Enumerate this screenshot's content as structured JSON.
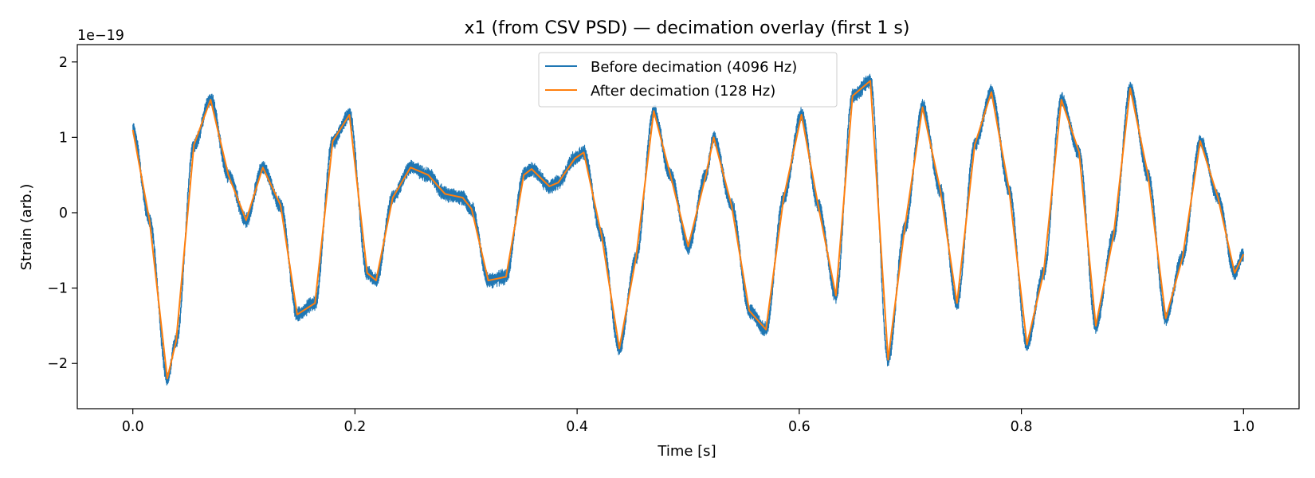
{
  "chart_data": {
    "type": "line",
    "title": "x1 (from CSV PSD) — decimation overlay (first 1 s)",
    "xlabel": "Time [s]",
    "ylabel": "Strain (arb.)",
    "y_offset_label": "1e−19",
    "xlim": [
      -0.05,
      1.05
    ],
    "ylim": [
      -2.6,
      2.23
    ],
    "x_ticks": [
      0.0,
      0.2,
      0.4,
      0.6,
      0.8,
      1.0
    ],
    "x_tick_labels": [
      "0.0",
      "0.2",
      "0.4",
      "0.6",
      "0.8",
      "1.0"
    ],
    "y_ticks": [
      -2,
      -1,
      0,
      1,
      2
    ],
    "y_tick_labels": [
      "−2",
      "−1",
      "0",
      "1",
      "2"
    ],
    "grid": false,
    "legend_position": "upper-center",
    "series": [
      {
        "name": "Before decimation (4096 Hz)",
        "color": "#1f77b4",
        "sample_rate_hz": 4096,
        "noise_amplitude": 0.09,
        "x": [
          0.0,
          0.015,
          0.031,
          0.039,
          0.055,
          0.07,
          0.086,
          0.102,
          0.117,
          0.133,
          0.148,
          0.164,
          0.18,
          0.195,
          0.211,
          0.219,
          0.234,
          0.25,
          0.266,
          0.281,
          0.297,
          0.305,
          0.32,
          0.336,
          0.352,
          0.359,
          0.375,
          0.383,
          0.398,
          0.406,
          0.422,
          0.438,
          0.453,
          0.469,
          0.484,
          0.5,
          0.516,
          0.523,
          0.539,
          0.555,
          0.57,
          0.586,
          0.602,
          0.617,
          0.633,
          0.648,
          0.664,
          0.68,
          0.695,
          0.711,
          0.727,
          0.742,
          0.758,
          0.773,
          0.789,
          0.805,
          0.82,
          0.836,
          0.852,
          0.867,
          0.883,
          0.898,
          0.914,
          0.93,
          0.945,
          0.961,
          0.977,
          0.992,
          1.0
        ],
        "values": [
          1.1,
          -0.1,
          -2.2,
          -1.7,
          0.9,
          1.5,
          0.5,
          -0.1,
          0.6,
          0.1,
          -1.35,
          -1.2,
          0.95,
          1.3,
          -0.8,
          -0.9,
          0.2,
          0.6,
          0.5,
          0.25,
          0.2,
          0.05,
          -0.9,
          -0.85,
          0.5,
          0.58,
          0.35,
          0.4,
          0.72,
          0.8,
          -0.3,
          -1.8,
          -0.6,
          1.35,
          0.5,
          -0.45,
          0.5,
          1.0,
          0.1,
          -1.3,
          -1.55,
          0.2,
          1.3,
          0.1,
          -1.1,
          1.55,
          1.75,
          -1.95,
          -0.2,
          1.4,
          0.3,
          -1.2,
          0.9,
          1.6,
          0.3,
          -1.75,
          -0.8,
          1.5,
          0.8,
          -1.5,
          -0.3,
          1.65,
          0.5,
          -1.4,
          -0.6,
          0.95,
          0.2,
          -0.8,
          -0.55
        ]
      },
      {
        "name": "After decimation (128 Hz)",
        "color": "#ff7f0e",
        "sample_rate_hz": 128,
        "x": [
          0.0,
          0.015,
          0.031,
          0.039,
          0.055,
          0.07,
          0.086,
          0.102,
          0.117,
          0.133,
          0.148,
          0.164,
          0.18,
          0.195,
          0.211,
          0.219,
          0.234,
          0.25,
          0.266,
          0.281,
          0.297,
          0.305,
          0.32,
          0.336,
          0.352,
          0.359,
          0.375,
          0.383,
          0.398,
          0.406,
          0.422,
          0.438,
          0.453,
          0.469,
          0.484,
          0.5,
          0.516,
          0.523,
          0.539,
          0.555,
          0.57,
          0.586,
          0.602,
          0.617,
          0.633,
          0.648,
          0.664,
          0.68,
          0.695,
          0.711,
          0.727,
          0.742,
          0.758,
          0.773,
          0.789,
          0.805,
          0.82,
          0.836,
          0.852,
          0.867,
          0.883,
          0.898,
          0.914,
          0.93,
          0.945,
          0.961,
          0.977,
          0.992,
          1.0
        ],
        "values": [
          1.1,
          -0.1,
          -2.2,
          -1.7,
          0.9,
          1.5,
          0.5,
          -0.1,
          0.6,
          0.1,
          -1.35,
          -1.2,
          0.95,
          1.3,
          -0.8,
          -0.9,
          0.2,
          0.6,
          0.5,
          0.25,
          0.2,
          0.05,
          -0.9,
          -0.85,
          0.5,
          0.58,
          0.35,
          0.4,
          0.72,
          0.8,
          -0.3,
          -1.8,
          -0.6,
          1.35,
          0.5,
          -0.45,
          0.5,
          1.0,
          0.1,
          -1.3,
          -1.55,
          0.2,
          1.3,
          0.1,
          -1.1,
          1.55,
          1.75,
          -1.95,
          -0.2,
          1.4,
          0.3,
          -1.2,
          0.9,
          1.6,
          0.3,
          -1.75,
          -0.8,
          1.5,
          0.8,
          -1.5,
          -0.3,
          1.65,
          0.5,
          -1.4,
          -0.6,
          0.95,
          0.2,
          -0.8,
          -0.55
        ]
      }
    ]
  }
}
